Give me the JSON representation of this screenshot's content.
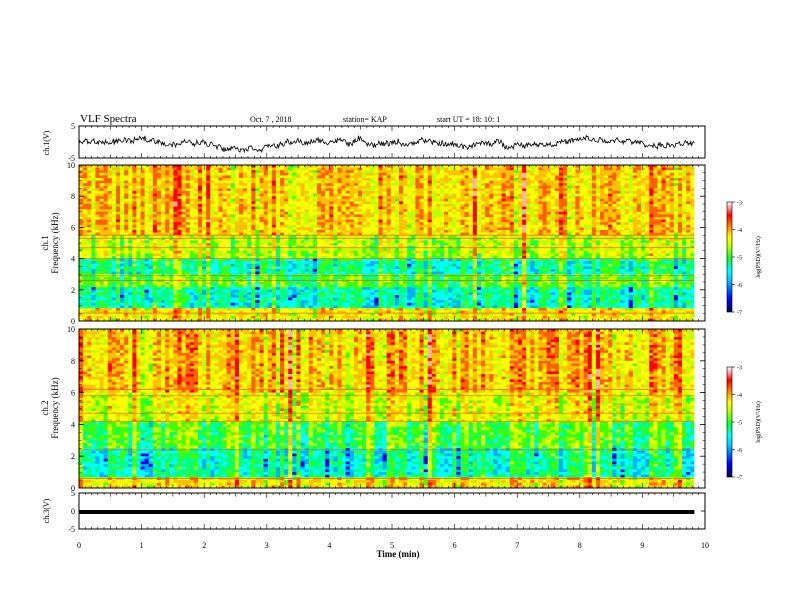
{
  "header": {
    "title": "VLF Spectra",
    "date": "Oct. 7 , 2018",
    "station": "station= KAP",
    "start": "start  UT =   18: 10: 1"
  },
  "chart_data": {
    "type": "heatmap",
    "xlabel": "Time  (min)",
    "x_ticks": [
      "0",
      "1",
      "2",
      "3",
      "4",
      "5",
      "6",
      "7",
      "8",
      "9",
      "10"
    ],
    "xlim": [
      0,
      10
    ],
    "data_end_min": 9.83,
    "panels": [
      {
        "id": "ch1-waveform",
        "type": "line",
        "ylabel": "ch.1(V)",
        "ylim": [
          -5,
          5
        ],
        "y_ticks": [
          "5",
          "-5"
        ],
        "baseline_v": -0.3,
        "amplitude_v": 1.5
      },
      {
        "id": "ch1-spectrogram",
        "type": "heatmap",
        "ylabel_line1": "ch.1",
        "ylabel_line2": "Frequency  (kHz)",
        "ylim": [
          0,
          10
        ],
        "y_ticks": [
          "0",
          "2",
          "4",
          "6",
          "8",
          "10"
        ],
        "colorbar": {
          "label": "log(PSD)(V²/Hz)",
          "range": [
            -7,
            -3
          ],
          "ticks": [
            "-3",
            "-4",
            "-5",
            "-6",
            "-7"
          ]
        }
      },
      {
        "id": "ch2-spectrogram",
        "type": "heatmap",
        "ylabel_line1": "ch.2",
        "ylabel_line2": "Frequency  (kHz)",
        "ylim": [
          0,
          10
        ],
        "y_ticks": [
          "0",
          "2",
          "4",
          "6",
          "8",
          "10"
        ],
        "colorbar": {
          "label": "log(PSD)(V²/Hz)",
          "range": [
            -7,
            -3
          ],
          "ticks": [
            "-3",
            "-4",
            "-5",
            "-6",
            "-7"
          ]
        }
      },
      {
        "id": "ch3-waveform",
        "type": "line",
        "ylabel": "ch.3(V)",
        "ylim": [
          -5,
          5
        ],
        "y_ticks": [
          "5",
          "0",
          "-5"
        ],
        "level_v": 0
      }
    ],
    "colormap": [
      "#000080",
      "#0000ff",
      "#00b0ff",
      "#00ffff",
      "#00ff80",
      "#40ff00",
      "#c0ff00",
      "#ffff00",
      "#ffc000",
      "#ff6000",
      "#ff0000",
      "#ffb0b0",
      "#ffffff"
    ]
  }
}
